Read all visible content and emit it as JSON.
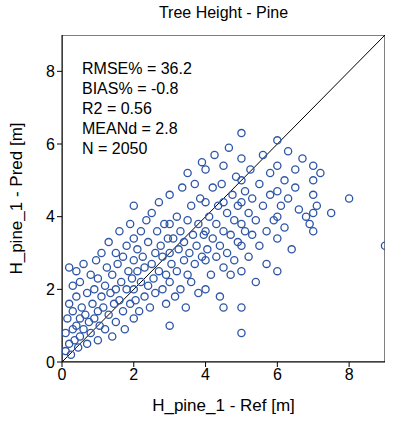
{
  "chart_data": {
    "type": "scatter",
    "title": "Tree Height - Pine",
    "x_label": "H_pine_1 - Ref [m]",
    "y_label": "H_pine_1 - Pred [m]",
    "annotations": [
      "RMSE% = 36.2",
      "BIAS% = -0.8",
      "R2 = 0.56",
      "MEANd = 2.8",
      "N = 2050"
    ],
    "color": "#2f56a6",
    "marker": "circle_open",
    "grid": false,
    "xlim": [
      0,
      9
    ],
    "ylim": [
      0,
      9
    ],
    "xticks": [
      0,
      2,
      4,
      6,
      8
    ],
    "yticks": [
      0,
      2,
      4,
      6,
      8
    ],
    "reference_line": {
      "x": [
        0,
        9
      ],
      "y": [
        0,
        9
      ]
    },
    "x": [
      0.1,
      0.1,
      0.15,
      0.2,
      0.2,
      0.2,
      0.25,
      0.3,
      0.3,
      0.3,
      0.35,
      0.4,
      0.4,
      0.4,
      0.45,
      0.5,
      0.5,
      0.5,
      0.55,
      0.6,
      0.6,
      0.65,
      0.7,
      0.7,
      0.75,
      0.8,
      0.8,
      0.85,
      0.9,
      0.9,
      0.95,
      1.0,
      1.0,
      1.0,
      1.05,
      1.1,
      1.1,
      1.15,
      1.2,
      1.2,
      1.25,
      1.3,
      1.3,
      1.35,
      1.4,
      1.4,
      1.45,
      1.5,
      1.5,
      1.5,
      1.55,
      1.6,
      1.6,
      1.65,
      1.7,
      1.7,
      1.75,
      1.8,
      1.8,
      1.85,
      1.9,
      1.9,
      1.95,
      2.0,
      2.0,
      2.0,
      2.0,
      2.0,
      2.05,
      2.1,
      2.1,
      2.15,
      2.2,
      2.2,
      2.25,
      2.3,
      2.3,
      2.35,
      2.4,
      2.4,
      2.45,
      2.5,
      2.5,
      2.55,
      2.6,
      2.6,
      2.65,
      2.7,
      2.7,
      2.75,
      2.8,
      2.8,
      2.85,
      2.9,
      2.9,
      2.95,
      3.0,
      3.0,
      3.0,
      3.0,
      3.0,
      3.05,
      3.1,
      3.15,
      3.2,
      3.2,
      3.25,
      3.3,
      3.3,
      3.35,
      3.4,
      3.4,
      3.45,
      3.5,
      3.5,
      3.5,
      3.55,
      3.6,
      3.6,
      3.65,
      3.7,
      3.7,
      3.75,
      3.8,
      3.8,
      3.85,
      3.9,
      3.9,
      3.95,
      4.0,
      4.0,
      4.0,
      4.0,
      4.0,
      4.05,
      4.1,
      4.15,
      4.2,
      4.2,
      4.25,
      4.3,
      4.3,
      4.35,
      4.4,
      4.4,
      4.45,
      4.5,
      4.5,
      4.5,
      4.5,
      4.5,
      4.6,
      4.6,
      4.65,
      4.7,
      4.7,
      4.75,
      4.8,
      4.8,
      4.85,
      4.9,
      4.9,
      5.0,
      5.0,
      5.0,
      5.0,
      5.0,
      5.0,
      5.0,
      5.0,
      5.0,
      5.1,
      5.1,
      5.2,
      5.2,
      5.25,
      5.3,
      5.3,
      5.4,
      5.4,
      5.5,
      5.5,
      5.6,
      5.6,
      5.7,
      5.7,
      5.8,
      5.8,
      5.9,
      6.0,
      6.0,
      6.0,
      6.0,
      6.0,
      6.0,
      6.1,
      6.2,
      6.2,
      6.3,
      6.3,
      6.4,
      6.5,
      6.5,
      6.6,
      6.7,
      6.8,
      6.9,
      7.0,
      7.0,
      7.0,
      7.0,
      7.0,
      7.1,
      7.2,
      7.5,
      8.0,
      9.0
    ],
    "values": [
      0.3,
      0.8,
      1.2,
      0.5,
      1.6,
      2.6,
      0.2,
      0.9,
      1.4,
      2.1,
      0.6,
      1.0,
      1.8,
      2.5,
      0.4,
      1.2,
      0.7,
      2.2,
      1.5,
      0.9,
      2.7,
      1.3,
      0.5,
      1.9,
      1.1,
      2.4,
      0.8,
      1.6,
      1.2,
      2.0,
      2.8,
      0.6,
      1.4,
      2.3,
      1.0,
      1.8,
      3.0,
      1.5,
      0.9,
      2.1,
      2.6,
      1.3,
      3.3,
      1.9,
      0.7,
      2.4,
      1.6,
      2.0,
      3.0,
      1.1,
      2.7,
      1.7,
      3.6,
      2.2,
      1.4,
      2.9,
      0.9,
      2.0,
      3.2,
      2.5,
      1.6,
      3.8,
      2.3,
      1.2,
      2.0,
      2.8,
      3.4,
      4.3,
      1.7,
      2.5,
      3.1,
      1.4,
      2.2,
      3.6,
      2.9,
      1.8,
      2.6,
      3.9,
      2.1,
      3.3,
      1.5,
      2.7,
      4.1,
      2.3,
      3.0,
      1.9,
      3.6,
      2.5,
      4.4,
      3.2,
      2.0,
      2.9,
      3.8,
      2.4,
      1.6,
      3.4,
      1.0,
      2.2,
      3.0,
      3.8,
      4.6,
      2.7,
      3.4,
      1.8,
      2.5,
      4.0,
      3.1,
      2.0,
      3.6,
      4.8,
      2.8,
      3.3,
      1.5,
      2.4,
      3.9,
      5.2,
      3.0,
      2.2,
      4.3,
      3.5,
      2.7,
      4.9,
      3.2,
      1.9,
      3.8,
      4.5,
      2.9,
      5.5,
      3.5,
      2.0,
      2.8,
      3.6,
      4.4,
      5.3,
      3.1,
      4.0,
      2.4,
      3.4,
      4.8,
      5.7,
      2.9,
      3.8,
      4.3,
      1.8,
      3.2,
      4.9,
      1.5,
      2.6,
      3.6,
      4.4,
      5.4,
      3.0,
      4.1,
      5.9,
      2.4,
      3.5,
      4.6,
      3.9,
      2.8,
      5.1,
      3.3,
      4.3,
      0.8,
      1.5,
      2.5,
      3.2,
      3.8,
      4.4,
      5.0,
      5.6,
      6.3,
      3.6,
      4.7,
      2.9,
      4.1,
      5.3,
      3.5,
      4.5,
      2.2,
      3.9,
      4.9,
      3.2,
      4.3,
      5.7,
      3.6,
      2.7,
      4.6,
      5.2,
      3.9,
      2.5,
      3.4,
      4.0,
      4.7,
      5.4,
      6.1,
      4.3,
      5.0,
      3.7,
      5.8,
      4.5,
      3.1,
      4.8,
      5.3,
      4.2,
      5.6,
      4.0,
      3.8,
      3.6,
      4.1,
      4.6,
      5.0,
      5.4,
      4.3,
      5.2,
      4.1,
      4.5,
      3.2
    ]
  }
}
